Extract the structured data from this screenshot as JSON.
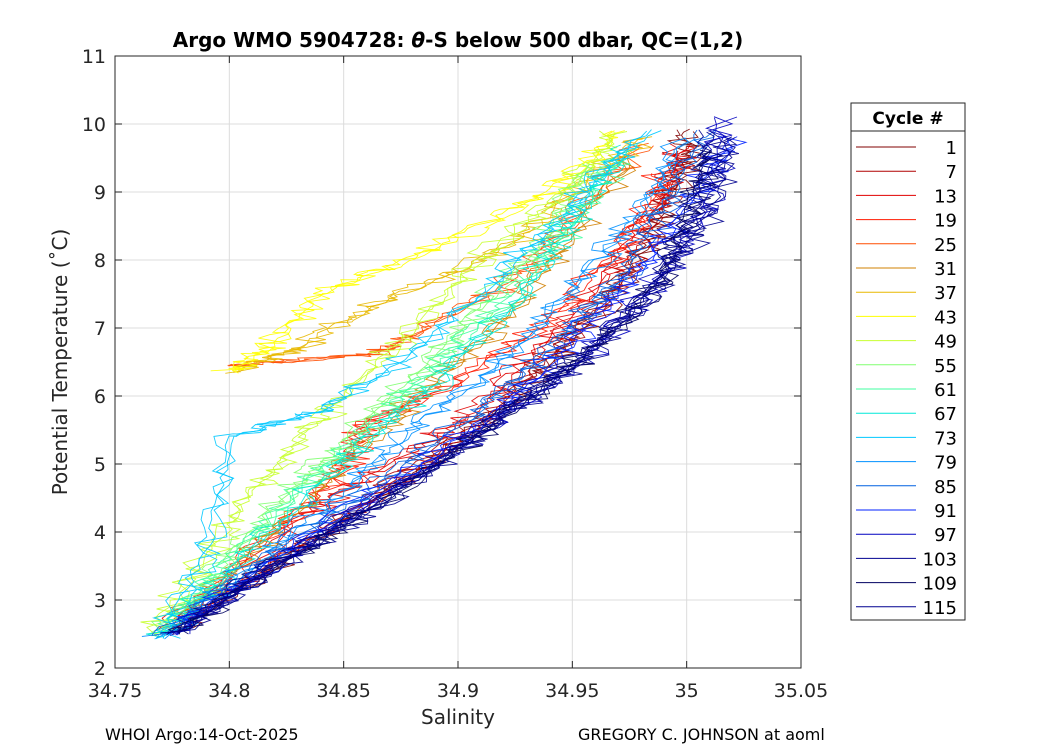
{
  "chart_data": {
    "type": "line",
    "title_parts": [
      "Argo WMO 5904728: ",
      "θ",
      "-S below 500 dbar,  QC=(1,2)"
    ],
    "xlabel": "Salinity",
    "ylabel": "Potential Temperature (˚C)",
    "xlim": [
      34.75,
      35.05
    ],
    "ylim": [
      2,
      11
    ],
    "xticks": [
      34.75,
      34.8,
      34.85,
      34.9,
      34.95,
      35,
      35.05
    ],
    "xtick_labels": [
      "34.75",
      "34.8",
      "34.85",
      "34.9",
      "34.95",
      "35",
      "35.05"
    ],
    "yticks": [
      2,
      3,
      4,
      5,
      6,
      7,
      8,
      9,
      10,
      11
    ],
    "ytick_labels": [
      "2",
      "3",
      "4",
      "5",
      "6",
      "7",
      "8",
      "9",
      "10",
      "11"
    ],
    "grid": true,
    "legend": {
      "title": "Cycle #",
      "placement": "outside-right",
      "entries": [
        {
          "label": "1",
          "color": "#800000"
        },
        {
          "label": "7",
          "color": "#b00000"
        },
        {
          "label": "13",
          "color": "#e00000"
        },
        {
          "label": "19",
          "color": "#ff1a00"
        },
        {
          "label": "25",
          "color": "#ff4d00"
        },
        {
          "label": "31",
          "color": "#d08000"
        },
        {
          "label": "37",
          "color": "#e8b800"
        },
        {
          "label": "43",
          "color": "#ffff00"
        },
        {
          "label": "49",
          "color": "#c8ff30"
        },
        {
          "label": "55",
          "color": "#80ff70"
        },
        {
          "label": "61",
          "color": "#40ffa0"
        },
        {
          "label": "67",
          "color": "#00e8d8"
        },
        {
          "label": "73",
          "color": "#00c8ff"
        },
        {
          "label": "79",
          "color": "#0090ff"
        },
        {
          "label": "85",
          "color": "#0060e0"
        },
        {
          "label": "91",
          "color": "#0020ff"
        },
        {
          "label": "97",
          "color": "#0000c0"
        },
        {
          "label": "103",
          "color": "#000090"
        },
        {
          "label": "109",
          "color": "#000060"
        },
        {
          "label": "115",
          "color": "#00008f"
        }
      ]
    },
    "series": [
      {
        "cycle": 1,
        "color": "#800000",
        "s": [
          34.772,
          34.81,
          34.86,
          34.9,
          34.935,
          34.96,
          34.985,
          34.998,
          35.0
        ],
        "t": [
          2.5,
          3.3,
          4.4,
          5.3,
          6.3,
          7.2,
          8.3,
          9.3,
          9.9
        ]
      },
      {
        "cycle": 7,
        "color": "#b00000",
        "s": [
          34.772,
          34.82,
          34.87,
          34.91,
          34.94,
          34.97,
          34.99,
          34.998
        ],
        "t": [
          2.55,
          3.6,
          4.7,
          5.6,
          6.6,
          7.6,
          8.8,
          9.6
        ]
      },
      {
        "cycle": 13,
        "color": "#e00000",
        "s": [
          34.775,
          34.83,
          34.86,
          34.9,
          34.93,
          34.96,
          34.985,
          35.0
        ],
        "t": [
          2.6,
          4.2,
          4.8,
          5.6,
          6.5,
          7.6,
          8.7,
          9.7
        ]
      },
      {
        "cycle": 19,
        "color": "#ff1a00",
        "s": [
          34.78,
          34.82,
          34.85,
          34.86,
          34.9,
          34.94,
          34.97,
          34.99
        ],
        "t": [
          2.7,
          4.0,
          4.9,
          5.6,
          6.2,
          7.1,
          8.2,
          9.3
        ]
      },
      {
        "cycle": 25,
        "color": "#ff4d00",
        "s": [
          34.8,
          34.86,
          34.88,
          34.92,
          34.95,
          34.98
        ],
        "t": [
          6.45,
          6.6,
          6.9,
          7.6,
          8.6,
          9.7
        ]
      },
      {
        "cycle": 31,
        "color": "#d08000",
        "s": [
          34.78,
          34.82,
          34.86,
          34.89,
          34.92,
          34.95,
          34.975
        ],
        "t": [
          2.8,
          4.0,
          5.3,
          6.2,
          7.1,
          8.3,
          9.5
        ]
      },
      {
        "cycle": 37,
        "color": "#e8b800",
        "s": [
          34.8,
          34.83,
          34.86,
          34.9,
          34.93,
          34.96,
          34.98
        ],
        "t": [
          6.35,
          6.7,
          7.3,
          7.8,
          8.4,
          9.2,
          9.8
        ]
      },
      {
        "cycle": 43,
        "color": "#ffff00",
        "s": [
          34.8,
          34.82,
          34.84,
          34.87,
          34.91,
          34.95,
          34.97
        ],
        "t": [
          6.35,
          6.8,
          7.5,
          7.9,
          8.5,
          9.2,
          9.9
        ]
      },
      {
        "cycle": 49,
        "color": "#c8ff30",
        "s": [
          34.765,
          34.79,
          34.81,
          34.83,
          34.85,
          34.88,
          34.91,
          34.95,
          34.97
        ],
        "t": [
          2.5,
          3.6,
          4.6,
          5.3,
          6.0,
          7.0,
          8.0,
          9.1,
          9.9
        ]
      },
      {
        "cycle": 55,
        "color": "#80ff70",
        "s": [
          34.77,
          34.8,
          34.83,
          34.85,
          34.88,
          34.91,
          34.94,
          34.96
        ],
        "t": [
          2.5,
          3.6,
          4.7,
          5.3,
          6.3,
          7.3,
          8.4,
          9.4
        ]
      },
      {
        "cycle": 61,
        "color": "#40ffa0",
        "s": [
          34.77,
          34.8,
          34.83,
          34.86,
          34.89,
          34.92,
          34.95,
          34.97
        ],
        "t": [
          2.5,
          3.5,
          4.6,
          5.5,
          6.4,
          7.4,
          8.5,
          9.5
        ]
      },
      {
        "cycle": 67,
        "color": "#00e8d8",
        "s": [
          34.77,
          34.8,
          34.84,
          34.87,
          34.9,
          34.93,
          34.95,
          34.975
        ],
        "t": [
          2.45,
          3.4,
          4.7,
          5.6,
          6.5,
          7.5,
          8.6,
          9.7
        ]
      },
      {
        "cycle": 73,
        "color": "#00c8ff",
        "s": [
          34.77,
          34.79,
          34.8,
          34.84,
          34.88,
          34.92,
          34.95,
          34.98
        ],
        "t": [
          2.45,
          3.7,
          5.4,
          5.8,
          6.6,
          7.8,
          8.8,
          9.9
        ]
      },
      {
        "cycle": 79,
        "color": "#0090ff",
        "s": [
          34.77,
          34.81,
          34.85,
          34.88,
          34.92,
          34.95,
          34.98,
          35.0
        ],
        "t": [
          2.45,
          3.5,
          4.6,
          5.5,
          6.5,
          7.6,
          8.7,
          9.8
        ]
      },
      {
        "cycle": 85,
        "color": "#0060e0",
        "s": [
          34.772,
          34.82,
          34.87,
          34.91,
          34.94,
          34.97,
          34.99,
          35.01
        ],
        "t": [
          2.5,
          3.7,
          4.8,
          5.8,
          6.7,
          7.7,
          8.8,
          9.9
        ]
      },
      {
        "cycle": 91,
        "color": "#0020ff",
        "s": [
          34.774,
          34.82,
          34.87,
          34.92,
          34.95,
          34.98,
          35.0,
          35.02
        ],
        "t": [
          2.5,
          3.6,
          4.7,
          5.8,
          6.8,
          7.8,
          8.8,
          9.8
        ]
      },
      {
        "cycle": 97,
        "color": "#0000c0",
        "s": [
          34.775,
          34.82,
          34.87,
          34.92,
          34.96,
          34.99,
          35.01,
          35.015
        ],
        "t": [
          2.5,
          3.5,
          4.6,
          5.7,
          6.7,
          7.8,
          8.8,
          10.1
        ]
      },
      {
        "cycle": 103,
        "color": "#000090",
        "s": [
          34.776,
          34.82,
          34.87,
          34.92,
          34.96,
          34.99,
          35.005,
          35.01
        ],
        "t": [
          2.5,
          3.5,
          4.5,
          5.7,
          6.7,
          7.8,
          8.8,
          9.9
        ]
      },
      {
        "cycle": 109,
        "color": "#000060",
        "s": [
          34.776,
          34.82,
          34.87,
          34.92,
          34.96,
          34.99,
          35.0,
          35.01
        ],
        "t": [
          2.5,
          3.5,
          4.5,
          5.7,
          6.7,
          7.7,
          8.7,
          9.6
        ]
      },
      {
        "cycle": 115,
        "color": "#00008f",
        "s": [
          34.776,
          34.82,
          34.87,
          34.92,
          34.96,
          34.99,
          35.01,
          35.02
        ],
        "t": [
          2.5,
          3.5,
          4.5,
          5.7,
          6.7,
          7.7,
          8.7,
          9.8
        ]
      }
    ]
  },
  "footer": {
    "left": "WHOI Argo:14-Oct-2025",
    "right": "GREGORY C. JOHNSON at aoml"
  }
}
